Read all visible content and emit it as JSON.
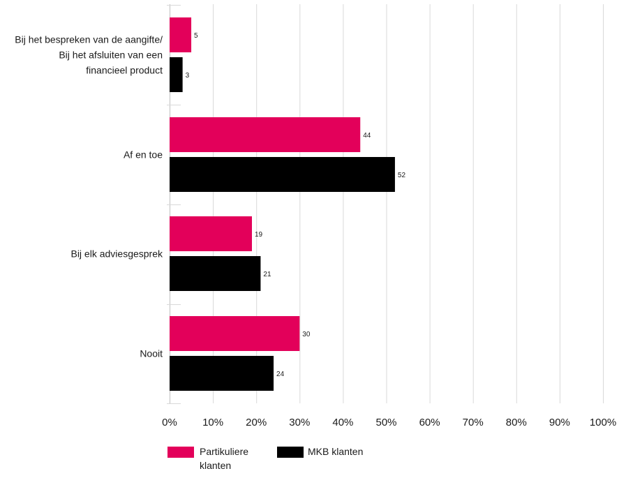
{
  "chart_data": {
    "type": "bar",
    "orientation": "horizontal",
    "categories": [
      [
        "Bij het bespreken van de aangifte/",
        "Bij het afsluiten van een",
        "financieel product"
      ],
      [
        "Af en toe"
      ],
      [
        "Bij elk adviesgesprek"
      ],
      [
        "Nooit"
      ]
    ],
    "series": [
      {
        "name": [
          "Partikuliere",
          "klanten"
        ],
        "color": "#e3005a",
        "values": [
          5,
          44,
          19,
          30
        ]
      },
      {
        "name": [
          "MKB klanten"
        ],
        "color": "#000000",
        "values": [
          3,
          52,
          21,
          24
        ]
      }
    ],
    "xlim": [
      0,
      100
    ],
    "xticks": [
      0,
      10,
      20,
      30,
      40,
      50,
      60,
      70,
      80,
      90,
      100
    ],
    "xtick_labels": [
      "0%",
      "10%",
      "20%",
      "30%",
      "40%",
      "50%",
      "60%",
      "70%",
      "80%",
      "90%",
      "100%"
    ],
    "grid": "vertical",
    "legend_position": "bottom-left",
    "title": "",
    "xlabel": "",
    "ylabel": ""
  }
}
